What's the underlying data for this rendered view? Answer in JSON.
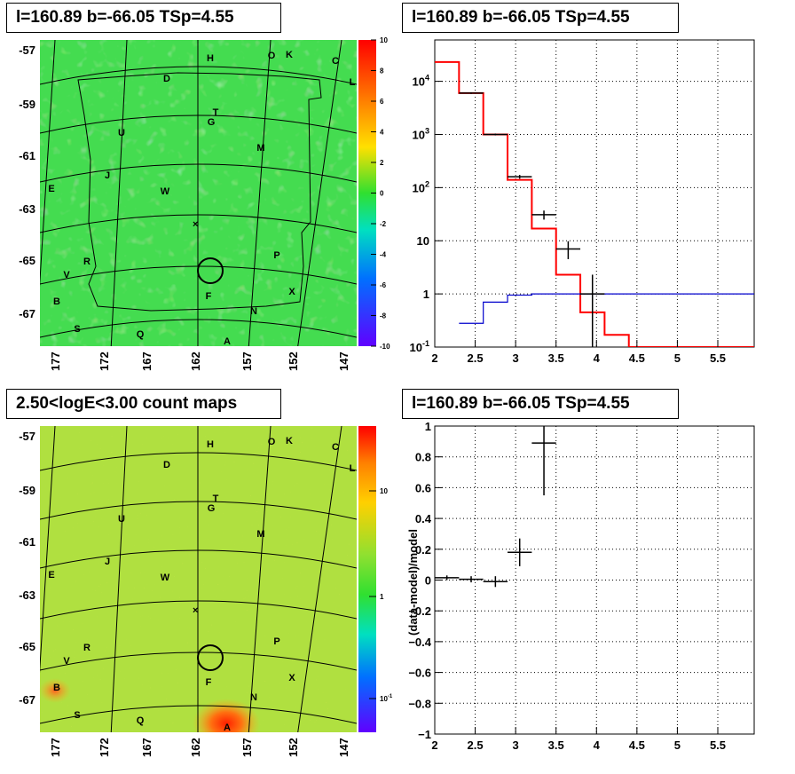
{
  "titles": {
    "top_left": "l=160.89 b=-66.05 TSp=4.55",
    "top_right": "l=160.89 b=-66.05 TSp=4.55",
    "bottom_left": "2.50<logE<3.00 count maps",
    "bottom_right": "l=160.89 b=-66.05 TSp=4.55"
  },
  "chart_data": [
    {
      "id": "tsmap",
      "type": "heatmap",
      "title": "l=160.89 b=-66.05 TSp=4.55",
      "colormap": "rainbow",
      "dominant_color": "#40d84a",
      "colorbar_range": [
        -10,
        10
      ],
      "colorbar_ticks": [
        "10",
        "8",
        "6",
        "4",
        "2",
        "0",
        "-2",
        "-4",
        "-6",
        "-8",
        "-10"
      ],
      "x_ticks": [
        "177",
        "172",
        "167",
        "162",
        "157",
        "152",
        "147"
      ],
      "y_ticks": [
        "-57",
        "-59",
        "-61",
        "-63",
        "-65",
        "-67"
      ],
      "source_labels": [
        "H",
        "O",
        "K",
        "C",
        "L",
        "D",
        "T",
        "G",
        "U",
        "M",
        "J",
        "E",
        "W",
        "R",
        "P",
        "V",
        "X",
        "F",
        "B",
        "N",
        "S",
        "Q",
        "A"
      ],
      "circle_marker": "source position",
      "x_marker": "×"
    },
    {
      "id": "countmap",
      "type": "heatmap",
      "title": "2.50<logE<3.00 count maps",
      "colormap": "rainbow-log",
      "dominant_color": "#b8e040",
      "colorbar_scale": "log",
      "colorbar_ticks": [
        "10",
        "1",
        "10^-1"
      ],
      "x_ticks": [
        "177",
        "172",
        "167",
        "162",
        "157",
        "152",
        "147"
      ],
      "y_ticks": [
        "-57",
        "-59",
        "-61",
        "-63",
        "-65",
        "-67"
      ],
      "source_labels": [
        "H",
        "O",
        "K",
        "C",
        "L",
        "D",
        "T",
        "G",
        "U",
        "M",
        "J",
        "E",
        "W",
        "R",
        "P",
        "V",
        "X",
        "F",
        "B",
        "N",
        "S",
        "Q",
        "A"
      ],
      "hotspot": "A"
    },
    {
      "id": "spectrum",
      "type": "line",
      "title": "l=160.89 b=-66.05 TSp=4.55",
      "x_ticks": [
        "2",
        "2.5",
        "3",
        "3.5",
        "4",
        "4.5",
        "5",
        "5.5"
      ],
      "xlim": [
        2.0,
        5.95
      ],
      "y_scale": "log",
      "ylim": [
        0.1,
        60000
      ],
      "y_ticks": [
        {
          "v": 10000,
          "b": "10",
          "e": "4"
        },
        {
          "v": 1000,
          "b": "10",
          "e": "3"
        },
        {
          "v": 100,
          "b": "10",
          "e": "2"
        },
        {
          "v": 10,
          "b": "10",
          "e": ""
        },
        {
          "v": 1,
          "b": "1",
          "e": ""
        },
        {
          "v": 0.1,
          "b": "10",
          "e": "-1"
        }
      ],
      "series": [
        {
          "color": "#ff0000",
          "steps": [
            [
              2.0,
              2.3,
              23000
            ],
            [
              2.3,
              2.6,
              6000
            ],
            [
              2.6,
              2.9,
              1000
            ],
            [
              2.9,
              3.2,
              140
            ],
            [
              3.2,
              3.5,
              17
            ],
            [
              3.5,
              3.8,
              2.3
            ],
            [
              3.8,
              4.1,
              0.45
            ],
            [
              4.1,
              4.4,
              0.17
            ],
            [
              4.4,
              5.95,
              0.1
            ]
          ]
        },
        {
          "color": "#0000cc",
          "steps": [
            [
              2.3,
              2.6,
              0.28
            ],
            [
              2.6,
              2.9,
              0.7
            ],
            [
              2.9,
              3.2,
              0.95
            ],
            [
              3.2,
              3.5,
              1.0
            ],
            [
              3.5,
              5.95,
              1.0
            ]
          ]
        }
      ],
      "points": [
        {
          "x": 2.45,
          "xerr": 0.15,
          "y": 6000,
          "ylo": 5800,
          "yhi": 6200
        },
        {
          "x": 2.75,
          "xerr": 0.15,
          "y": 1000,
          "ylo": 960,
          "yhi": 1040
        },
        {
          "x": 3.05,
          "xerr": 0.15,
          "y": 160,
          "ylo": 147,
          "yhi": 173
        },
        {
          "x": 3.35,
          "xerr": 0.15,
          "y": 31,
          "ylo": 25,
          "yhi": 37
        },
        {
          "x": 3.65,
          "xerr": 0.15,
          "y": 7,
          "ylo": 4.5,
          "yhi": 9.8
        },
        {
          "x": 3.95,
          "xerr": 0.15,
          "y": 1.0,
          "ylo": 0.1,
          "yhi": 2.3
        }
      ]
    },
    {
      "id": "residuals",
      "type": "scatter",
      "title": "l=160.89 b=-66.05 TSp=4.55",
      "ylabel": "(data-model)/model",
      "x_ticks": [
        "2",
        "2.5",
        "3",
        "3.5",
        "4",
        "4.5",
        "5",
        "5.5"
      ],
      "xlim": [
        2.0,
        5.95
      ],
      "ylim": [
        -1.0,
        1.0
      ],
      "y_ticks": [
        "1",
        "0.8",
        "0.6",
        "0.4",
        "0.2",
        "0",
        "−0.2",
        "−0.4",
        "−0.6",
        "−0.8",
        "−1"
      ],
      "points": [
        {
          "x": 2.15,
          "xerr": 0.15,
          "y": 0.015,
          "err": 0.015
        },
        {
          "x": 2.45,
          "xerr": 0.15,
          "y": 0.005,
          "err": 0.02
        },
        {
          "x": 2.75,
          "xerr": 0.15,
          "y": -0.01,
          "err": 0.035
        },
        {
          "x": 3.05,
          "xerr": 0.15,
          "y": 0.18,
          "err": 0.09
        },
        {
          "x": 3.35,
          "xerr": 0.15,
          "y": 0.89,
          "err": 0.34
        }
      ]
    }
  ]
}
